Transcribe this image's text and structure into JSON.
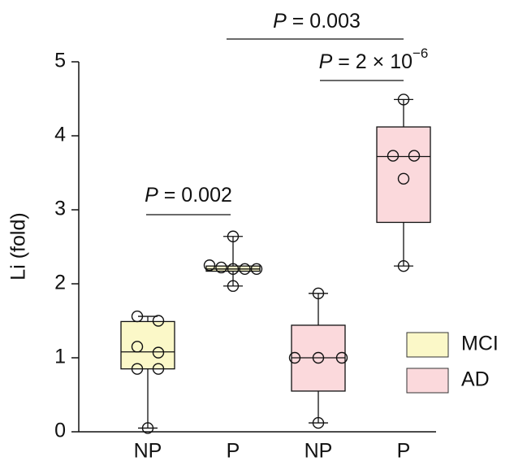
{
  "chart_data": {
    "type": "box",
    "y_label": "Li (fold)",
    "categories": [
      "NP",
      "P",
      "NP",
      "P"
    ],
    "ylim": [
      0,
      5
    ],
    "yticks": [
      0,
      1,
      2,
      3,
      4,
      5
    ],
    "series": [
      {
        "name": "MCI",
        "color": "#fbf8c8",
        "boxes": [
          {
            "whisker_low": 0.05,
            "q1": 0.85,
            "median": 1.08,
            "q3": 1.49,
            "whisker_high": 1.56,
            "points": [
              1.56,
              1.5,
              1.15,
              1.07,
              0.85,
              0.85,
              0.05
            ]
          },
          {
            "whisker_low": 1.97,
            "q1": 2.17,
            "median": 2.2,
            "q3": 2.24,
            "whisker_high": 2.64,
            "points": [
              2.64,
              2.25,
              2.22,
              2.2,
              2.2,
              2.2,
              1.97
            ]
          }
        ]
      },
      {
        "name": "AD",
        "color": "#fbd9dc",
        "boxes": [
          {
            "whisker_low": 0.12,
            "q1": 0.55,
            "median": 1.0,
            "q3": 1.44,
            "whisker_high": 1.87,
            "points": [
              1.87,
              1.0,
              1.0,
              1.0,
              0.12
            ]
          },
          {
            "whisker_low": 2.24,
            "q1": 2.83,
            "median": 3.72,
            "q3": 4.12,
            "whisker_high": 4.49,
            "points": [
              4.49,
              3.73,
              3.73,
              3.42,
              2.24
            ]
          }
        ]
      }
    ],
    "annotations": [
      {
        "italic": "P",
        "text": "= 0.002"
      },
      {
        "italic": "P",
        "text": "= 0.003"
      },
      {
        "italic": "P",
        "text": "= 2 × 10",
        "superscript": "−6"
      }
    ]
  }
}
